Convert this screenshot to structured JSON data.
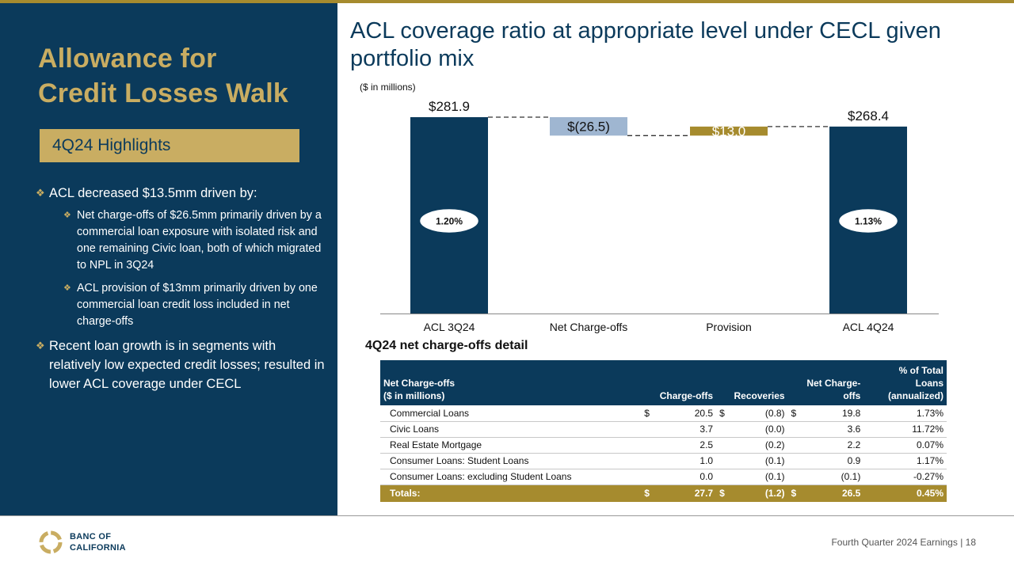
{
  "slide": {
    "left_title_line1": "Allowance for",
    "left_title_line2": "Credit Losses Walk",
    "highlights_label": "4Q24 Highlights",
    "bullet1": "ACL decreased $13.5mm driven by:",
    "bullet1_sub1": "Net charge-offs of $26.5mm primarily driven by a commercial loan exposure with isolated risk and one remaining Civic loan, both of which migrated to NPL in 3Q24",
    "bullet1_sub2": "ACL provision of $13mm primarily driven by one commercial loan credit loss included in net charge-offs",
    "bullet2": "Recent loan growth is in segments with relatively low expected credit losses; resulted in lower ACL coverage under CECL",
    "main_title": "ACL coverage ratio at appropriate level under CECL given portfolio mix",
    "units": "($ in millions)",
    "table_title": "4Q24 net charge-offs detail",
    "footer": "Fourth Quarter 2024 Earnings |  18",
    "logo_line1": "BANC OF",
    "logo_line2": "CALIFORNIA"
  },
  "colors": {
    "navy": "#0b3a5b",
    "gold": "#c9ad62",
    "dark_gold": "#a68b2e",
    "light_blue": "#9fb6d1"
  },
  "chart_data": {
    "type": "bar",
    "subtype": "waterfall",
    "units": "($ in millions)",
    "categories": [
      "ACL 3Q24",
      "Net Charge-offs",
      "Provision",
      "ACL 4Q24"
    ],
    "values": [
      281.9,
      -26.5,
      13.0,
      268.4
    ],
    "value_labels": [
      "$281.9",
      "$(26.5)",
      "$13.0",
      "$268.4"
    ],
    "coverage_ratios": [
      "1.20%",
      "",
      "",
      "1.13%"
    ],
    "ylim": [
      0,
      281.9
    ]
  },
  "table": {
    "headers": [
      "Net Charge-offs\n($ in millions)",
      "Charge-offs",
      "Recoveries",
      "Net Charge-offs",
      "% of Total Loans (annualized)"
    ],
    "header_first_line1": "Net Charge-offs",
    "header_first_line2": "($ in millions)",
    "header_co": "Charge-offs",
    "header_rec": "Recoveries",
    "header_net_line1": "Net Charge-",
    "header_net_line2": "offs",
    "header_pct_line1": "% of Total",
    "header_pct_line2": "Loans",
    "header_pct_line3": "(annualized)",
    "currency": "$",
    "rows": [
      {
        "label": "Commercial Loans",
        "charge_offs": "20.5",
        "recoveries": "(0.8)",
        "net": "19.8",
        "pct": "1.73%"
      },
      {
        "label": "Civic Loans",
        "charge_offs": "3.7",
        "recoveries": "(0.0)",
        "net": "3.6",
        "pct": "11.72%"
      },
      {
        "label": "Real Estate Mortgage",
        "charge_offs": "2.5",
        "recoveries": "(0.2)",
        "net": "2.2",
        "pct": "0.07%"
      },
      {
        "label": "Consumer Loans: Student Loans",
        "charge_offs": "1.0",
        "recoveries": "(0.1)",
        "net": "0.9",
        "pct": "1.17%"
      },
      {
        "label": "Consumer Loans: excluding Student Loans",
        "charge_offs": "0.0",
        "recoveries": "(0.1)",
        "net": "(0.1)",
        "pct": "-0.27%"
      }
    ],
    "total": {
      "label": "Totals:",
      "charge_offs": "27.7",
      "recoveries": "(1.2)",
      "net": "26.5",
      "pct": "0.45%"
    }
  }
}
